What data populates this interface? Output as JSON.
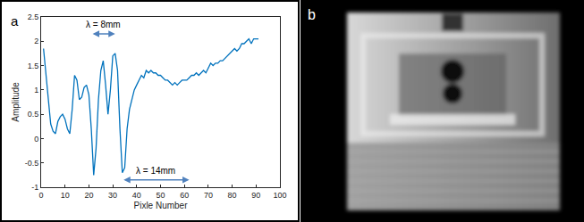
{
  "panel_labels": [
    "a",
    "b"
  ],
  "chart_data": {
    "type": "line",
    "x_label": "Pixle Number",
    "y_label": "Amplitude",
    "x": [
      1,
      2,
      3,
      4,
      5,
      6,
      7,
      8,
      9,
      10,
      11,
      12,
      13,
      14,
      15,
      16,
      17,
      18,
      19,
      20,
      21,
      22,
      23,
      24,
      25,
      26,
      27,
      28,
      29,
      30,
      31,
      32,
      33,
      34,
      35,
      36,
      37,
      38,
      39,
      40,
      41,
      42,
      43,
      44,
      45,
      46,
      47,
      48,
      49,
      50,
      51,
      52,
      53,
      54,
      55,
      56,
      57,
      58,
      59,
      60,
      61,
      62,
      63,
      64,
      65,
      66,
      67,
      68,
      69,
      70,
      71,
      72,
      73,
      74,
      75,
      76,
      77,
      78,
      79,
      80,
      81,
      82,
      83,
      84,
      85,
      86,
      87,
      88,
      89,
      90,
      91
    ],
    "values": [
      1.85,
      1.3,
      0.7,
      0.3,
      0.15,
      0.1,
      0.35,
      0.45,
      0.5,
      0.4,
      0.2,
      0.1,
      0.6,
      1.3,
      1.2,
      0.8,
      0.85,
      1.05,
      1.1,
      0.9,
      0.2,
      -0.75,
      -0.2,
      0.8,
      1.4,
      1.6,
      1.1,
      0.5,
      1.0,
      1.7,
      1.75,
      1.4,
      0.2,
      -0.7,
      -0.6,
      0.2,
      0.6,
      0.8,
      1.0,
      1.1,
      1.2,
      1.3,
      1.25,
      1.4,
      1.35,
      1.4,
      1.35,
      1.35,
      1.3,
      1.3,
      1.25,
      1.2,
      1.2,
      1.15,
      1.1,
      1.15,
      1.1,
      1.15,
      1.2,
      1.2,
      1.2,
      1.25,
      1.3,
      1.3,
      1.35,
      1.3,
      1.35,
      1.4,
      1.35,
      1.45,
      1.55,
      1.5,
      1.55,
      1.55,
      1.6,
      1.6,
      1.65,
      1.7,
      1.75,
      1.8,
      1.85,
      1.8,
      1.85,
      1.95,
      1.95,
      2.0,
      2.05,
      1.95,
      2.05,
      2.05,
      2.05
    ],
    "color": "#0072bd",
    "xlim": [
      0,
      100
    ],
    "xticks": [
      0,
      10,
      20,
      30,
      40,
      50,
      60,
      70,
      80,
      90,
      100
    ],
    "ylim": [
      -1,
      2.5
    ],
    "yticks": [
      -1,
      -0.5,
      0,
      0.5,
      1,
      1.5,
      2,
      2.5
    ],
    "grid": false,
    "annotations": [
      {
        "text": "λ = 8mm",
        "x": [
          21,
          31
        ],
        "y": 2.15
      },
      {
        "text": "λ = 14mm",
        "x": [
          34,
          62
        ],
        "y": -0.85
      }
    ]
  }
}
